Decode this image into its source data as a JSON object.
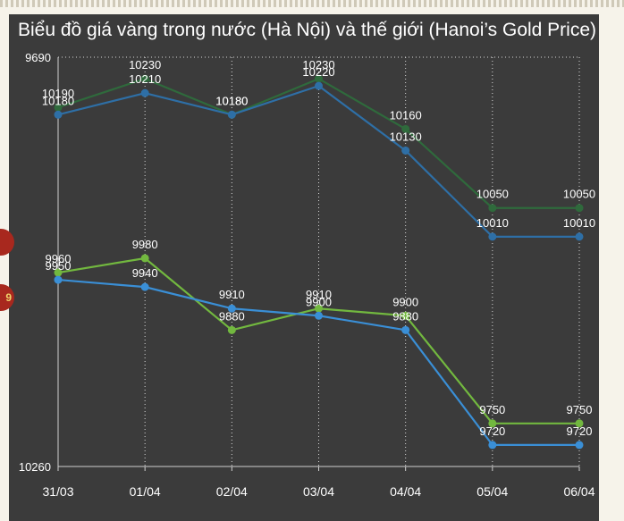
{
  "title": "Biểu đồ giá vàng trong nước (Hà Nội) và thế giới (Hanoi’s Gold Price)",
  "side_badges": [
    "",
    "9"
  ],
  "colors": {
    "panel": "#3b3b3b",
    "dark_green": "#2f6a3c",
    "light_green": "#72b83f",
    "blue": "#3a8fd6",
    "badge": "#a8281e"
  },
  "chart_data": {
    "type": "line",
    "categories": [
      "31/03",
      "01/04",
      "02/04",
      "03/04",
      "04/04",
      "05/04",
      "06/04"
    ],
    "ylim": [
      9690,
      10260
    ],
    "ytick_labels": [
      "9690",
      "10260"
    ],
    "grid": true,
    "series": [
      {
        "color": "#2f6a3c",
        "values": [
          10190,
          10230,
          10180,
          10230,
          10160,
          10050,
          10050
        ]
      },
      {
        "color": "#2e6fa6",
        "values": [
          10180,
          10210,
          10180,
          10220,
          10130,
          10010,
          10010
        ]
      },
      {
        "color": "#72b83f",
        "values": [
          9960,
          9980,
          9880,
          9910,
          9900,
          9750,
          9750
        ]
      },
      {
        "color": "#3a8fd6",
        "values": [
          9950,
          9940,
          9910,
          9900,
          9880,
          9720,
          9720
        ]
      }
    ]
  }
}
